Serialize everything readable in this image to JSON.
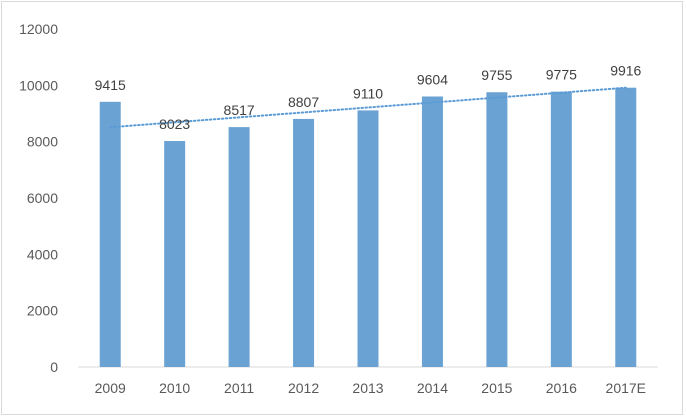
{
  "chart_data": {
    "type": "bar",
    "title": "",
    "xlabel": "",
    "ylabel": "",
    "categories": [
      "2009",
      "2010",
      "2011",
      "2012",
      "2013",
      "2014",
      "2015",
      "2016",
      "2017E"
    ],
    "values": [
      9415,
      8023,
      8517,
      8807,
      9110,
      9604,
      9755,
      9775,
      9916
    ],
    "data_labels": [
      "9415",
      "8023",
      "8517",
      "8807",
      "9110",
      "9604",
      "9755",
      "9775",
      "9916"
    ],
    "ylim": [
      0,
      12000
    ],
    "yticks": [
      0,
      2000,
      4000,
      6000,
      8000,
      10000,
      12000
    ],
    "ytick_labels": [
      "0",
      "2000",
      "4000",
      "6000",
      "8000",
      "10000",
      "12000"
    ],
    "grid": false,
    "legend": "none",
    "trendline": {
      "type": "linear",
      "style": "dotted"
    },
    "colors": {
      "bar": "#6aa3d3",
      "trendline": "#5b9bd5",
      "axis": "#d9d9d9",
      "text": "#595959"
    }
  }
}
